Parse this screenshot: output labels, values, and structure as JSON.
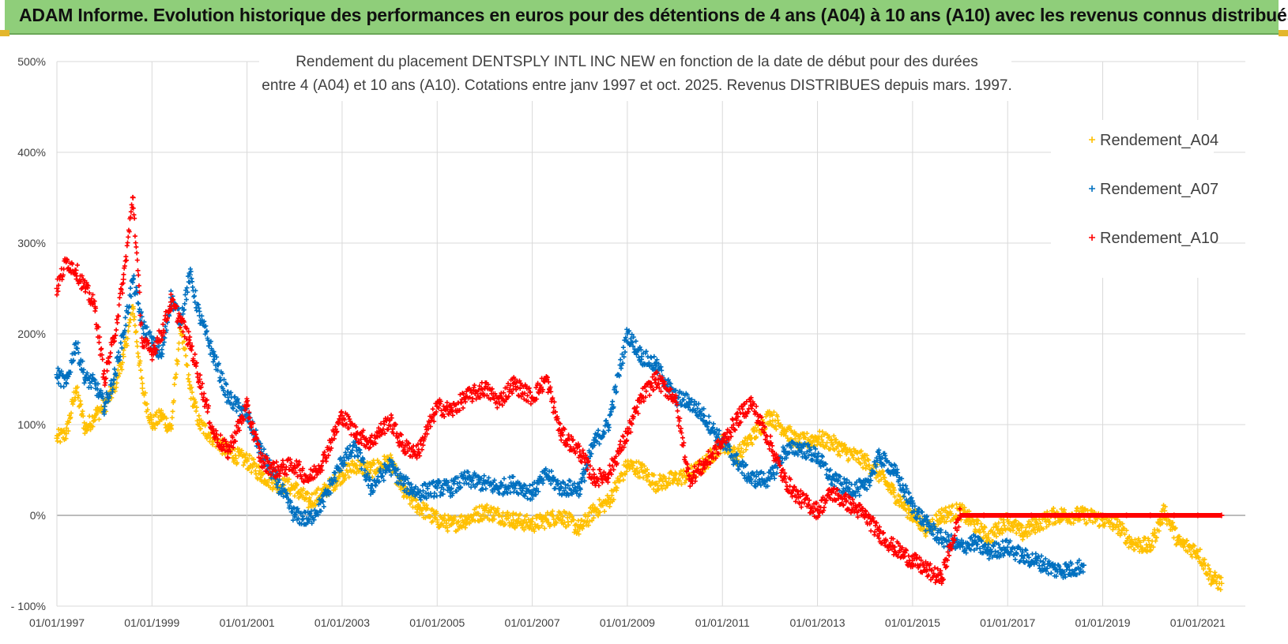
{
  "banner": {
    "title": "ADAM Informe. Evolution historique des performances en euros pour des détentions de 4 ans (A04) à 10 ans (A10) avec les revenus connus distribués"
  },
  "chart_data": {
    "type": "scatter",
    "title_lines": [
      "Rendement du placement DENTSPLY INTL INC NEW en fonction de la date de début pour des durées",
      "entre 4 (A04) et 10 ans (A10).  Cotations entre janv 1997 et oct. 2025.  Revenus DISTRIBUES depuis mars. 1997."
    ],
    "xlabel": "",
    "ylabel": "",
    "x_range": [
      1997.0,
      2021.5
    ],
    "ylim": [
      -100,
      500
    ],
    "y_ticks": [
      -100,
      0,
      100,
      200,
      300,
      400,
      500
    ],
    "y_tick_labels": [
      "- 100%",
      "0%",
      "100%",
      "200%",
      "300%",
      "400%",
      "500%"
    ],
    "x_ticks": [
      1997,
      1999,
      2001,
      2003,
      2005,
      2007,
      2009,
      2011,
      2013,
      2015,
      2017,
      2019,
      2021
    ],
    "x_tick_labels": [
      "01/01/1997",
      "01/01/1999",
      "01/01/2001",
      "01/01/2003",
      "01/01/2005",
      "01/01/2007",
      "01/01/2009",
      "01/01/2011",
      "01/01/2013",
      "01/01/2015",
      "01/01/2017",
      "01/01/2019",
      "01/01/2021"
    ],
    "grid": true,
    "legend_position": "top-right",
    "series": [
      {
        "name": "Rendement_A04",
        "color": "#ffc000",
        "x": [
          1997.0,
          1997.2,
          1997.4,
          1997.6,
          1997.8,
          1998.0,
          1998.2,
          1998.4,
          1998.6,
          1998.8,
          1999.0,
          1999.2,
          1999.4,
          1999.6,
          1999.8,
          2000.0,
          2000.3,
          2000.6,
          2001.0,
          2001.3,
          2001.6,
          2002.0,
          2002.3,
          2002.6,
          2003.0,
          2003.3,
          2003.6,
          2004.0,
          2004.3,
          2004.6,
          2005.0,
          2005.3,
          2005.6,
          2006.0,
          2006.3,
          2006.6,
          2007.0,
          2007.3,
          2007.6,
          2008.0,
          2008.3,
          2008.6,
          2009.0,
          2009.3,
          2009.6,
          2010.0,
          2010.3,
          2010.6,
          2011.0,
          2011.3,
          2011.6,
          2012.0,
          2012.3,
          2012.6,
          2013.0,
          2013.3,
          2013.6,
          2014.0,
          2014.3,
          2014.6,
          2015.0,
          2015.3,
          2015.6,
          2016.0,
          2016.3,
          2016.6,
          2017.0,
          2017.3,
          2017.6,
          2018.0,
          2018.3,
          2018.6,
          2019.0,
          2019.3,
          2019.6,
          2020.0,
          2020.3,
          2020.6,
          2021.0,
          2021.3,
          2021.5
        ],
        "values": [
          85,
          90,
          140,
          95,
          110,
          120,
          140,
          175,
          230,
          140,
          100,
          110,
          95,
          210,
          140,
          100,
          85,
          70,
          60,
          45,
          35,
          30,
          15,
          25,
          45,
          55,
          50,
          60,
          25,
          10,
          -5,
          -10,
          -5,
          5,
          0,
          -5,
          -10,
          -5,
          0,
          -15,
          5,
          15,
          55,
          50,
          35,
          40,
          45,
          55,
          80,
          65,
          85,
          110,
          95,
          80,
          85,
          80,
          70,
          60,
          45,
          25,
          0,
          -15,
          0,
          5,
          -10,
          -25,
          -5,
          -20,
          -10,
          0,
          0,
          0,
          -5,
          -10,
          -30,
          -35,
          5,
          -30,
          -40,
          -70,
          -75
        ]
      },
      {
        "name": "Rendement_A07",
        "color": "#0070c0",
        "x": [
          1997.0,
          1997.2,
          1997.4,
          1997.6,
          1997.8,
          1998.0,
          1998.2,
          1998.4,
          1998.6,
          1998.8,
          1999.0,
          1999.2,
          1999.4,
          1999.6,
          1999.8,
          2000.0,
          2000.3,
          2000.6,
          2001.0,
          2001.3,
          2001.6,
          2002.0,
          2002.3,
          2002.6,
          2003.0,
          2003.3,
          2003.6,
          2004.0,
          2004.3,
          2004.6,
          2005.0,
          2005.3,
          2005.6,
          2006.0,
          2006.3,
          2006.6,
          2007.0,
          2007.3,
          2007.6,
          2008.0,
          2008.3,
          2008.6,
          2009.0,
          2009.3,
          2009.6,
          2010.0,
          2010.3,
          2010.6,
          2011.0,
          2011.3,
          2011.6,
          2012.0,
          2012.3,
          2012.6,
          2013.0,
          2013.3,
          2013.6,
          2014.0,
          2014.3,
          2014.6,
          2015.0,
          2015.3,
          2015.6,
          2016.0,
          2016.3,
          2016.6,
          2017.0,
          2017.3,
          2017.6,
          2018.0,
          2018.3,
          2018.6
        ],
        "values": [
          155,
          145,
          190,
          150,
          145,
          120,
          150,
          200,
          260,
          210,
          190,
          175,
          240,
          215,
          265,
          220,
          175,
          130,
          110,
          70,
          40,
          0,
          -5,
          15,
          60,
          75,
          30,
          55,
          35,
          25,
          30,
          30,
          40,
          35,
          30,
          35,
          25,
          45,
          30,
          30,
          80,
          100,
          200,
          175,
          165,
          130,
          125,
          110,
          80,
          60,
          40,
          40,
          70,
          75,
          65,
          40,
          30,
          30,
          65,
          50,
          10,
          -10,
          -25,
          -35,
          -30,
          -40,
          -35,
          -45,
          -50,
          -60,
          -60,
          -55
        ]
      },
      {
        "name": "Rendement_A10",
        "color": "#ff0000",
        "x": [
          1997.0,
          1997.2,
          1997.4,
          1997.6,
          1997.8,
          1998.0,
          1998.2,
          1998.4,
          1998.6,
          1998.8,
          1999.0,
          1999.2,
          1999.4,
          1999.6,
          1999.8,
          2000.0,
          2000.3,
          2000.6,
          2001.0,
          2001.3,
          2001.6,
          2002.0,
          2002.3,
          2002.6,
          2003.0,
          2003.3,
          2003.6,
          2004.0,
          2004.3,
          2004.6,
          2005.0,
          2005.3,
          2005.6,
          2006.0,
          2006.3,
          2006.6,
          2007.0,
          2007.3,
          2007.6,
          2008.0,
          2008.3,
          2008.6,
          2009.0,
          2009.3,
          2009.6,
          2010.0,
          2010.3,
          2010.6,
          2011.0,
          2011.3,
          2011.6,
          2012.0,
          2012.3,
          2012.6,
          2013.0,
          2013.3,
          2013.6,
          2014.0,
          2014.3,
          2014.6,
          2015.0,
          2015.3,
          2015.6,
          2016.0,
          2016.5,
          2017.0,
          2017.5,
          2018.0,
          2018.5,
          2019.0,
          2019.5,
          2020.0,
          2020.5,
          2021.0,
          2021.5
        ],
        "values": [
          250,
          280,
          270,
          250,
          230,
          150,
          195,
          260,
          350,
          190,
          180,
          200,
          235,
          215,
          190,
          150,
          90,
          70,
          120,
          60,
          50,
          55,
          40,
          60,
          110,
          90,
          80,
          105,
          75,
          70,
          120,
          115,
          130,
          140,
          125,
          145,
          130,
          150,
          90,
          70,
          40,
          45,
          90,
          130,
          150,
          130,
          40,
          55,
          80,
          105,
          125,
          80,
          40,
          20,
          5,
          25,
          15,
          0,
          -20,
          -35,
          -50,
          -60,
          -70,
          0,
          0,
          0,
          0,
          0,
          0,
          0,
          0,
          0,
          0,
          0,
          0
        ]
      }
    ]
  }
}
